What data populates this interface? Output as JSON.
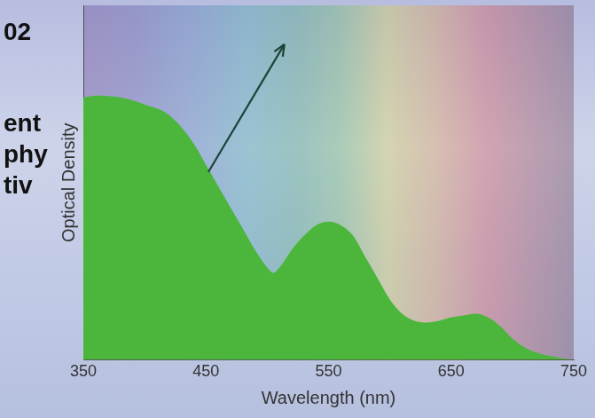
{
  "chart_data": {
    "type": "area",
    "x_label": "Wavelength (nm)",
    "y_label": "Optical Density",
    "x": [
      350,
      360,
      380,
      400,
      420,
      440,
      450,
      460,
      470,
      480,
      490,
      500,
      505,
      510,
      520,
      530,
      540,
      550,
      560,
      570,
      580,
      590,
      600,
      610,
      620,
      630,
      640,
      650,
      660,
      670,
      680,
      690,
      700,
      710,
      720,
      740,
      750
    ],
    "values": [
      0.74,
      0.745,
      0.74,
      0.72,
      0.69,
      0.61,
      0.55,
      0.49,
      0.43,
      0.37,
      0.31,
      0.26,
      0.245,
      0.26,
      0.31,
      0.35,
      0.38,
      0.39,
      0.38,
      0.35,
      0.29,
      0.23,
      0.17,
      0.13,
      0.11,
      0.105,
      0.11,
      0.12,
      0.125,
      0.13,
      0.12,
      0.095,
      0.06,
      0.035,
      0.02,
      0.005,
      0
    ],
    "xlim": [
      350,
      750
    ],
    "xticks": [
      350,
      450,
      550,
      650,
      750
    ],
    "ylim": [
      0,
      1
    ],
    "yticks": [],
    "tick_labels": "x",
    "grid": false
  },
  "background_text": [
    "02",
    "ent",
    "phy",
    "tiv"
  ]
}
